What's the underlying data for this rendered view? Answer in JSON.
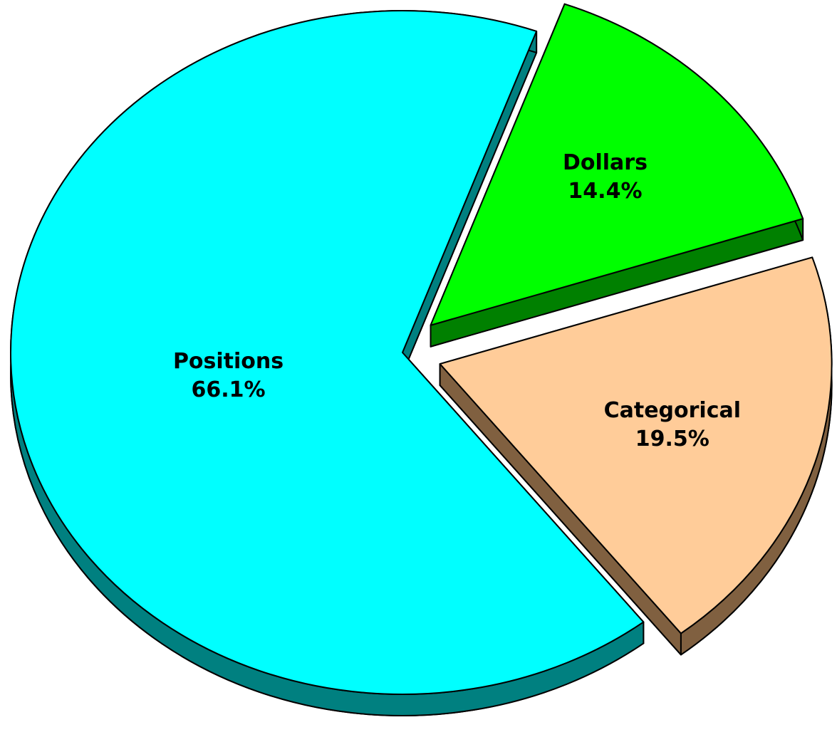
{
  "chart_data": {
    "type": "pie",
    "categories": [
      "Dollars",
      "Categorical",
      "Positions"
    ],
    "values": [
      14.4,
      19.5,
      66.1
    ],
    "value_labels": [
      "14.4%",
      "19.5%",
      "66.1%"
    ],
    "colors": [
      "#00ff00",
      "#ffcc99",
      "#00ffff"
    ],
    "side_colors": [
      "#008000",
      "#806040",
      "#008080"
    ]
  }
}
